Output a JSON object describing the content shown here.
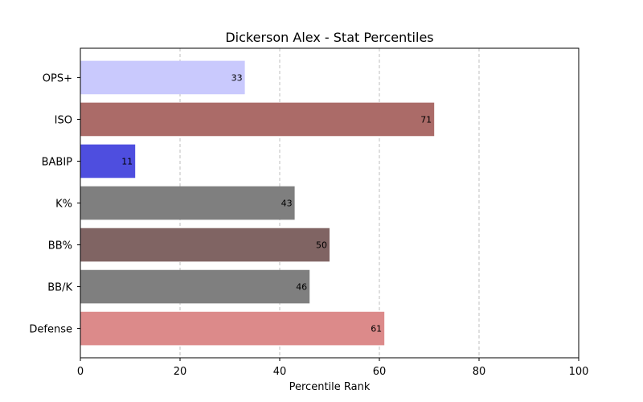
{
  "chart_data": {
    "type": "bar",
    "orientation": "horizontal",
    "title": "Dickerson Alex - Stat Percentiles",
    "xlabel": "Percentile Rank",
    "ylabel": "",
    "xlim": [
      0,
      100
    ],
    "xticks": [
      0,
      20,
      40,
      60,
      80,
      100
    ],
    "grid": "x-dashed",
    "categories": [
      "OPS+",
      "ISO",
      "BABIP",
      "K%",
      "BB%",
      "BB/K",
      "Defense"
    ],
    "values": [
      33,
      71,
      11,
      43,
      50,
      46,
      61
    ],
    "colors": [
      "#c9c9fd",
      "#ab6b68",
      "#4e4edf",
      "#7f7f7f",
      "#806463",
      "#7f7f7f",
      "#dc8a8a"
    ]
  }
}
